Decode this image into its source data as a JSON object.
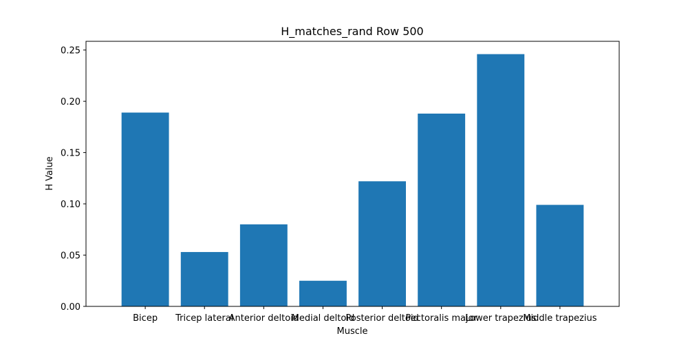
{
  "chart_data": {
    "type": "bar",
    "title": "H_matches_rand Row 500",
    "xlabel": "Muscle",
    "ylabel": "H Value",
    "categories": [
      "Bicep",
      "Tricep lateral",
      "Anterior deltoid",
      "Medial deltoid",
      "Posterior deltoid",
      "Pectoralis major",
      "Lower trapezius",
      "Middle trapezius"
    ],
    "values": [
      0.189,
      0.053,
      0.08,
      0.025,
      0.122,
      0.188,
      0.246,
      0.099
    ],
    "ylim": [
      0,
      0.2585
    ],
    "yticks": [
      "0.00",
      "0.05",
      "0.10",
      "0.15",
      "0.20",
      "0.25"
    ],
    "grid": false,
    "bar_color": "#1f77b4"
  }
}
